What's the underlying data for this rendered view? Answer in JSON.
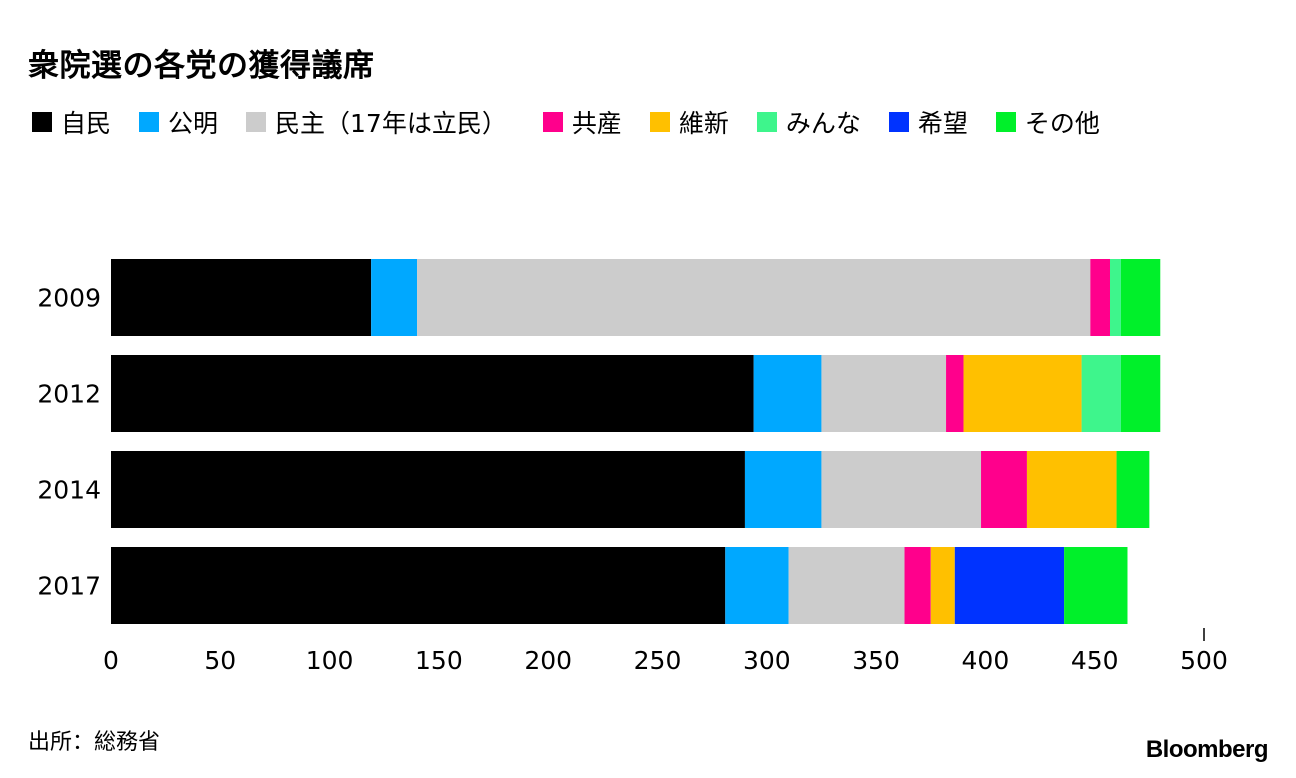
{
  "title": "衆院選の各党の獲得議席",
  "source": "出所：総務省",
  "brand": "Bloomberg",
  "chart_data": {
    "type": "bar",
    "orientation": "horizontal",
    "stacked": true,
    "title": "衆院選の各党の獲得議席",
    "categories": [
      "2009",
      "2012",
      "2014",
      "2017"
    ],
    "series": [
      {
        "name": "自民",
        "color": "#000000",
        "values": [
          119,
          294,
          290,
          281
        ]
      },
      {
        "name": "公明",
        "color": "#00a8ff",
        "values": [
          21,
          31,
          35,
          29
        ]
      },
      {
        "name": "民主（17年は立民）",
        "color": "#cccccc",
        "values": [
          308,
          57,
          73,
          53
        ]
      },
      {
        "name": "共産",
        "color": "#ff008c",
        "values": [
          9,
          8,
          21,
          12
        ]
      },
      {
        "name": "維新",
        "color": "#ffc000",
        "values": [
          0,
          54,
          41,
          11
        ]
      },
      {
        "name": "みんな",
        "color": "#3ef58c",
        "values": [
          5,
          18,
          0,
          0
        ]
      },
      {
        "name": "希望",
        "color": "#0033ff",
        "values": [
          0,
          0,
          0,
          50
        ]
      },
      {
        "name": "その他",
        "color": "#00f02a",
        "values": [
          18,
          18,
          15,
          29
        ]
      }
    ],
    "xlim": [
      0,
      500
    ],
    "xticks": [
      "0",
      "50",
      "100",
      "150",
      "200",
      "250",
      "300",
      "350",
      "400",
      "450",
      "500"
    ],
    "xlabel": "",
    "ylabel": "",
    "grid": false,
    "legend": "top-left"
  }
}
